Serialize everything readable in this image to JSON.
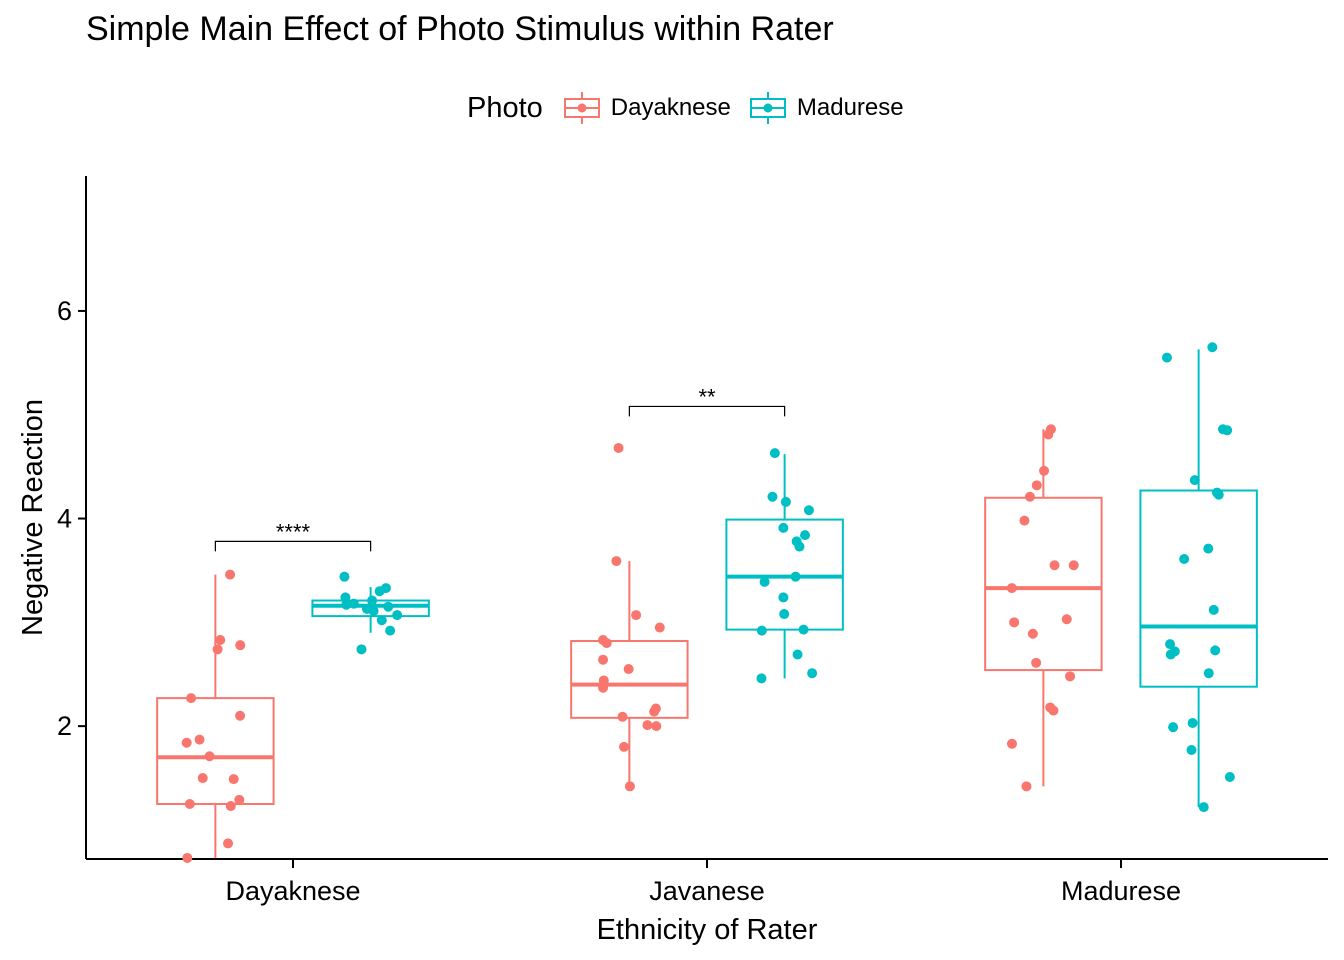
{
  "chart_data": {
    "type": "box",
    "title": "Simple Main Effect of Photo Stimulus within Rater",
    "xlabel": "Ethnicity of Rater",
    "ylabel": "Negative Reaction",
    "categories": [
      "Dayaknese",
      "Javanese",
      "Madurese"
    ],
    "ylim": [
      0.72,
      7.3
    ],
    "yticks": [
      2,
      4,
      6
    ],
    "legend": {
      "title": "Photo",
      "position": "top"
    },
    "grid": false,
    "series": [
      {
        "name": "Dayaknese",
        "color": "#F8766D",
        "boxes": [
          {
            "category": "Dayaknese",
            "min": 0.73,
            "q1": 1.25,
            "median": 1.7,
            "q3": 2.27,
            "max": 3.46,
            "points": [
              3.46,
              2.83,
              2.78,
              2.74,
              2.27,
              2.1,
              1.87,
              1.84,
              1.71,
              1.5,
              1.49,
              1.29,
              1.25,
              1.23,
              0.87,
              0.73
            ]
          },
          {
            "category": "Javanese",
            "min": 1.42,
            "q1": 2.08,
            "median": 2.4,
            "q3": 2.82,
            "max": 3.59,
            "points": [
              4.68,
              3.59,
              3.07,
              2.95,
              2.83,
              2.8,
              2.64,
              2.55,
              2.44,
              2.37,
              2.17,
              2.14,
              2.09,
              2.01,
              2.0,
              1.8,
              1.42
            ]
          },
          {
            "category": "Madurese",
            "min": 1.42,
            "q1": 2.54,
            "median": 3.33,
            "q3": 4.2,
            "max": 4.86,
            "points": [
              4.86,
              4.81,
              4.46,
              4.32,
              4.21,
              3.98,
              3.55,
              3.55,
              3.33,
              3.03,
              3.0,
              2.89,
              2.61,
              2.48,
              2.18,
              2.15,
              1.83,
              1.42
            ]
          }
        ]
      },
      {
        "name": "Madurese",
        "color": "#00BFC4",
        "boxes": [
          {
            "category": "Dayaknese",
            "min": 2.9,
            "q1": 3.06,
            "median": 3.16,
            "q3": 3.21,
            "max": 3.34,
            "points": [
              3.44,
              3.33,
              3.3,
              3.24,
              3.21,
              3.18,
              3.17,
              3.15,
              3.13,
              3.11,
              3.07,
              3.02,
              2.92,
              2.74
            ]
          },
          {
            "category": "Javanese",
            "min": 2.46,
            "q1": 2.93,
            "median": 3.44,
            "q3": 3.99,
            "max": 4.62,
            "points": [
              4.63,
              4.21,
              4.16,
              4.08,
              3.91,
              3.84,
              3.78,
              3.73,
              3.44,
              3.39,
              3.24,
              3.08,
              2.93,
              2.92,
              2.69,
              2.51,
              2.46
            ]
          },
          {
            "category": "Madurese",
            "min": 1.22,
            "q1": 2.38,
            "median": 2.96,
            "q3": 4.27,
            "max": 5.63,
            "points": [
              5.65,
              5.55,
              4.86,
              4.85,
              4.37,
              4.25,
              4.23,
              3.71,
              3.61,
              3.12,
              2.79,
              2.73,
              2.72,
              2.69,
              2.51,
              2.03,
              1.99,
              1.77,
              1.51,
              1.22
            ]
          }
        ]
      }
    ],
    "annotations": [
      {
        "category": "Dayaknese",
        "y": 3.78,
        "label": "****"
      },
      {
        "category": "Javanese",
        "y": 5.08,
        "label": "**"
      }
    ]
  }
}
